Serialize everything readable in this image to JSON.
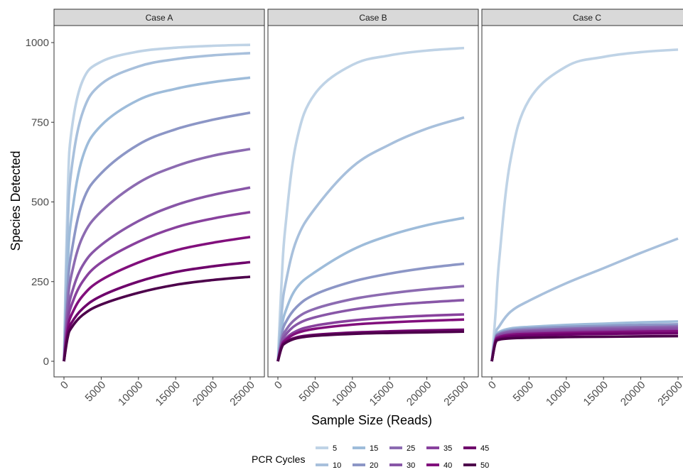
{
  "chart_data": {
    "type": "line",
    "xlabel": "Sample Size (Reads)",
    "ylabel": "Species Detected",
    "xlim": [
      0,
      25000
    ],
    "ylim": [
      0,
      1000
    ],
    "xticks": [
      0,
      5000,
      10000,
      15000,
      20000,
      25000
    ],
    "yticks": [
      0,
      250,
      500,
      750,
      1000
    ],
    "grid": false,
    "legend": {
      "title": "PCR Cycles",
      "position": "bottom",
      "entries": [
        "5",
        "10",
        "15",
        "20",
        "25",
        "30",
        "35",
        "40",
        "45",
        "50"
      ],
      "colors": [
        "#bfd3e6",
        "#a8c0dc",
        "#9ebcda",
        "#8c96c6",
        "#8c6bb1",
        "#8856a7",
        "#88419d",
        "#810f7c",
        "#6e016b",
        "#4d004b"
      ]
    },
    "x": [
      0,
      500,
      1000,
      2500,
      5000,
      10000,
      15000,
      20000,
      25000
    ],
    "panels": [
      {
        "title": "Case A",
        "series": [
          {
            "name": "5",
            "values": [
              0,
              520,
              720,
              880,
              940,
              972,
              984,
              990,
              993
            ]
          },
          {
            "name": "10",
            "values": [
              0,
              420,
              600,
              780,
              870,
              925,
              948,
              960,
              967
            ]
          },
          {
            "name": "15",
            "values": [
              0,
              300,
              450,
              640,
              740,
              820,
              855,
              876,
              890
            ]
          },
          {
            "name": "20",
            "values": [
              0,
              230,
              340,
              500,
              590,
              680,
              728,
              758,
              780
            ]
          },
          {
            "name": "25",
            "values": [
              0,
              180,
              270,
              390,
              470,
              560,
              612,
              645,
              666
            ]
          },
          {
            "name": "30",
            "values": [
              0,
              140,
              210,
              300,
              365,
              440,
              490,
              522,
              545
            ]
          },
          {
            "name": "35",
            "values": [
              0,
              120,
              175,
              250,
              310,
              375,
              420,
              448,
              468
            ]
          },
          {
            "name": "40",
            "values": [
              0,
              100,
              145,
              205,
              255,
              310,
              348,
              372,
              390
            ]
          },
          {
            "name": "45",
            "values": [
              0,
              85,
              120,
              165,
              205,
              250,
              280,
              298,
              311
            ]
          },
          {
            "name": "50",
            "values": [
              0,
              75,
              105,
              145,
              178,
              215,
              240,
              255,
              265
            ]
          }
        ]
      },
      {
        "title": "Case B",
        "series": [
          {
            "name": "5",
            "values": [
              0,
              250,
              420,
              690,
              840,
              930,
              960,
              975,
              983
            ]
          },
          {
            "name": "10",
            "values": [
              0,
              150,
              240,
              380,
              480,
              610,
              680,
              730,
              765
            ]
          },
          {
            "name": "15",
            "values": [
              0,
              100,
              155,
              230,
              280,
              350,
              395,
              427,
              450
            ]
          },
          {
            "name": "20",
            "values": [
              0,
              80,
              120,
              170,
              210,
              250,
              275,
              293,
              306
            ]
          },
          {
            "name": "25",
            "values": [
              0,
              65,
              95,
              135,
              165,
              195,
              213,
              226,
              236
            ]
          },
          {
            "name": "30",
            "values": [
              0,
              58,
              82,
              115,
              138,
              162,
              176,
              185,
              192
            ]
          },
          {
            "name": "35",
            "values": [
              0,
              50,
              70,
              95,
              112,
              128,
              137,
              143,
              147
            ]
          },
          {
            "name": "40",
            "values": [
              0,
              48,
              66,
              88,
              102,
              115,
              122,
              127,
              131
            ]
          },
          {
            "name": "45",
            "values": [
              0,
              44,
              60,
              75,
              83,
              90,
              94,
              97,
              99
            ]
          },
          {
            "name": "50",
            "values": [
              0,
              42,
              57,
              72,
              80,
              86,
              89,
              91,
              93
            ]
          }
        ]
      },
      {
        "title": "Case C",
        "series": [
          {
            "name": "5",
            "values": [
              0,
              150,
              320,
              630,
              820,
              925,
              955,
              970,
              978
            ]
          },
          {
            "name": "10",
            "values": [
              0,
              85,
              110,
              155,
              190,
              245,
              292,
              340,
              385
            ]
          },
          {
            "name": "15",
            "values": [
              0,
              75,
              92,
              103,
              108,
              114,
              118,
              122,
              125
            ]
          },
          {
            "name": "20",
            "values": [
              0,
              72,
              88,
              98,
              103,
              108,
              111,
              114,
              116
            ]
          },
          {
            "name": "25",
            "values": [
              0,
              70,
              85,
              94,
              98,
              102,
              105,
              107,
              109
            ]
          },
          {
            "name": "30",
            "values": [
              0,
              68,
              82,
              90,
              94,
              98,
              100,
              102,
              104
            ]
          },
          {
            "name": "35",
            "values": [
              0,
              66,
              79,
              86,
              90,
              93,
              95,
              97,
              98
            ]
          },
          {
            "name": "40",
            "values": [
              0,
              64,
              76,
              83,
              86,
              89,
              91,
              93,
              94
            ]
          },
          {
            "name": "45",
            "values": [
              0,
              61,
              72,
              78,
              81,
              84,
              86,
              87,
              88
            ]
          },
          {
            "name": "50",
            "values": [
              0,
              58,
              68,
              72,
              74,
              76,
              77,
              78,
              79
            ]
          }
        ]
      }
    ]
  }
}
